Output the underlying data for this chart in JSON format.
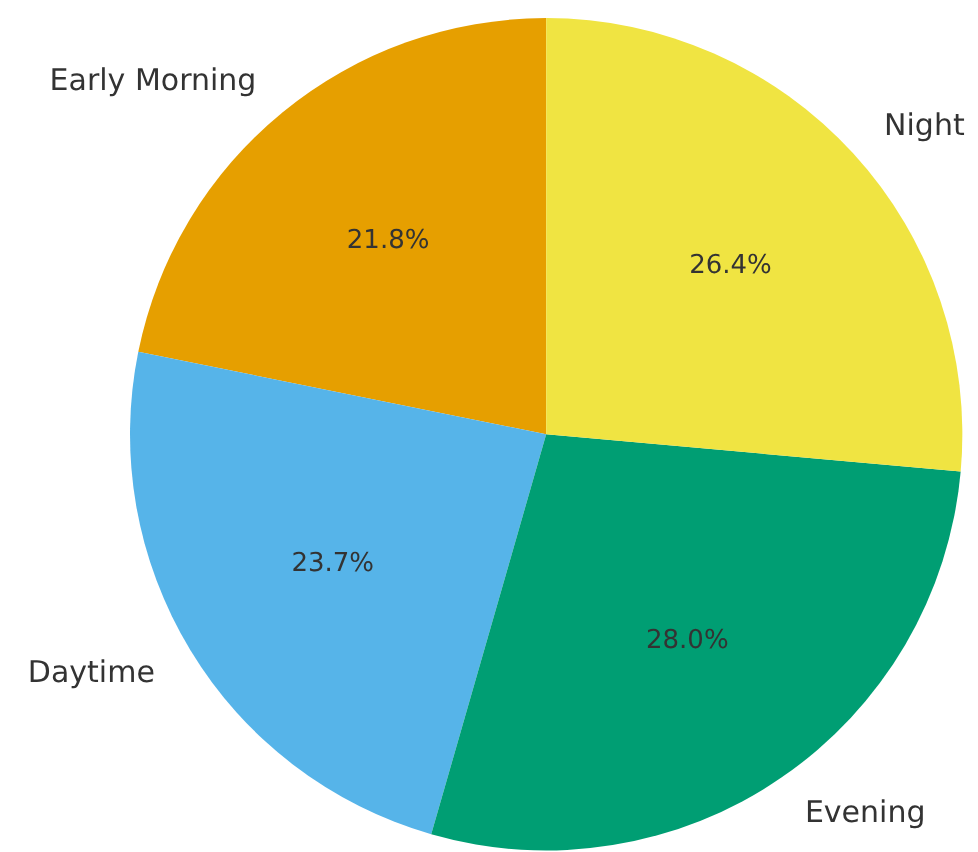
{
  "chart_data": {
    "type": "pie",
    "categories": [
      "Early Morning",
      "Daytime",
      "Evening",
      "Night"
    ],
    "values": [
      21.8,
      23.7,
      28.0,
      26.4
    ],
    "colors": [
      "#e69f00",
      "#56b4e9",
      "#009e73",
      "#f0e442"
    ],
    "value_labels": [
      "21.8%",
      "23.7%",
      "28.0%",
      "26.4%"
    ]
  }
}
